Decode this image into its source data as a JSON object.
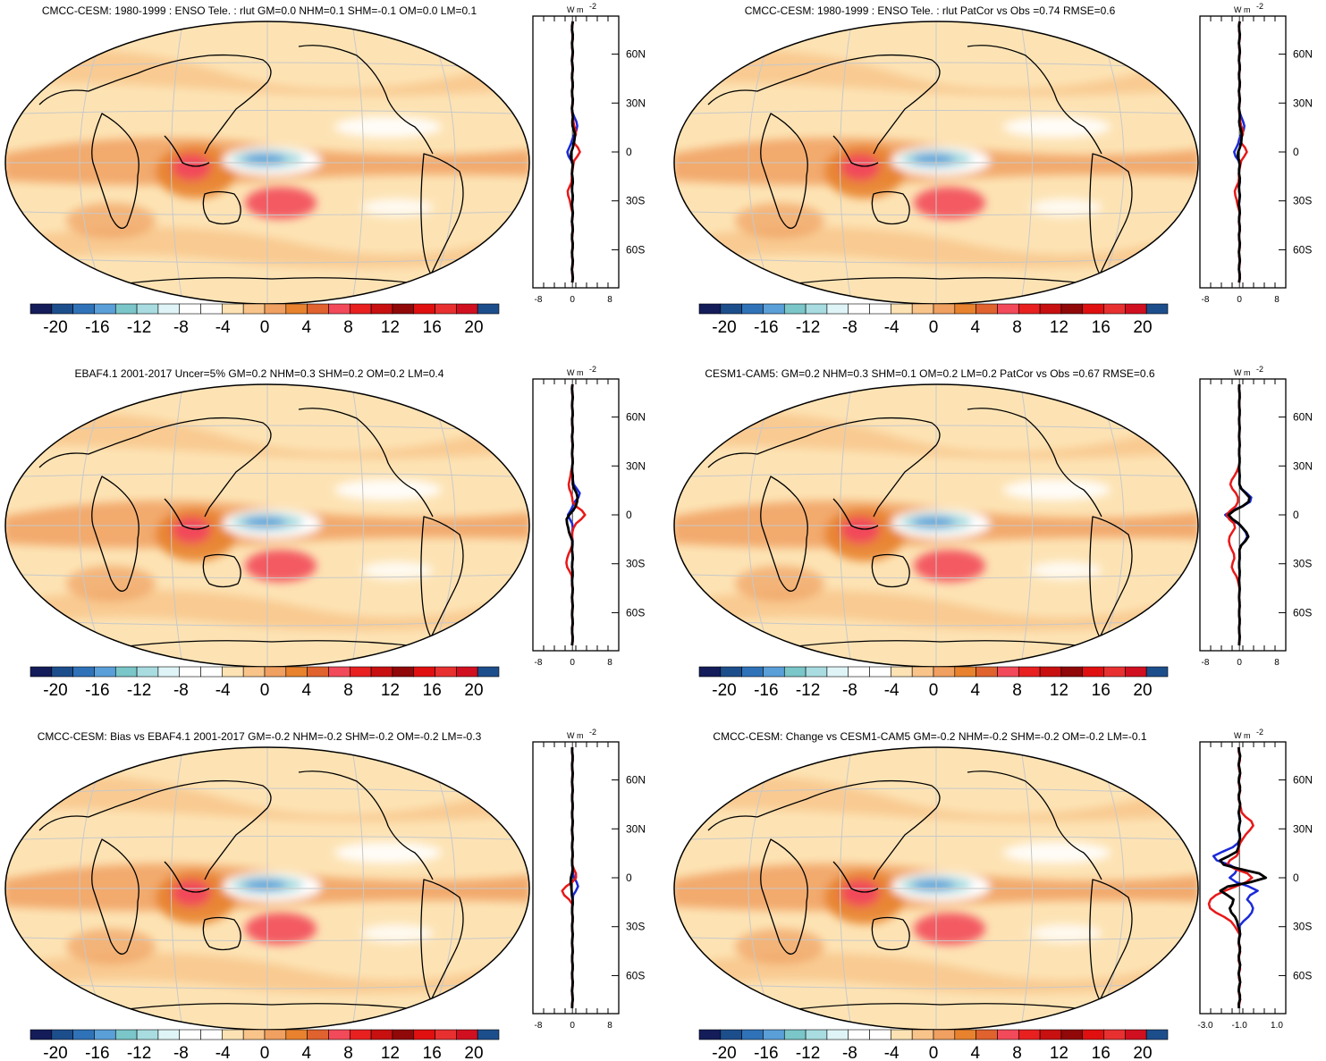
{
  "figure": {
    "colorbar": {
      "labels": [
        "-20",
        "-16",
        "-12",
        "-8",
        "-4",
        "0",
        "4",
        "8",
        "12",
        "16",
        "20"
      ],
      "colors": [
        "#141c5a",
        "#1d4e8c",
        "#2f72b8",
        "#5a9fd8",
        "#7ac6c8",
        "#a8dce0",
        "#dff4f6",
        "#ffffff",
        "#ffffff",
        "#fde3b4",
        "#f8c48a",
        "#f0a060",
        "#e8822e",
        "#e0622e",
        "#f24a5a",
        "#e82020",
        "#c81010",
        "#900808",
        "#e01010",
        "#e83030",
        "#d01020",
        "#1d4e8c"
      ]
    },
    "profile_unit": "W m",
    "profile_unit_sup": "-2",
    "lat_ticks": [
      "60N",
      "30N",
      "0",
      "30S",
      "60S"
    ],
    "panels": [
      {
        "id": "p1",
        "title": "CMCC-CESM: 1980-1999 : ENSO Tele. : rlut GM=0.0 NHM=0.1 SHM=-0.1 OM=0.0 LM=0.1",
        "xticks": [
          "-8",
          "0",
          "8"
        ]
      },
      {
        "id": "p2",
        "title": "CMCC-CESM: 1980-1999 : ENSO Tele. : rlut PatCor vs Obs =0.74 RMSE=0.6",
        "xticks": [
          "-8",
          "0",
          "8"
        ]
      },
      {
        "id": "p3",
        "title": "EBAF4.1 2001-2017 Uncer=5% GM=0.2 NHM=0.3 SHM=0.2 OM=0.2 LM=0.4",
        "xticks": [
          "-8",
          "0",
          "8"
        ]
      },
      {
        "id": "p4",
        "title": "CESM1-CAM5: GM=0.2 NHM=0.3 SHM=0.1 OM=0.2 LM=0.2 PatCor vs Obs =0.67 RMSE=0.6",
        "xticks": [
          "-8",
          "0",
          "8"
        ]
      },
      {
        "id": "p5",
        "title": "CMCC-CESM: Bias vs EBAF4.1 2001-2017 GM=-0.2 NHM=-0.2 SHM=-0.2 OM=-0.2 LM=-0.3",
        "xticks": [
          "-8",
          "0",
          "8"
        ]
      },
      {
        "id": "p6",
        "title": "CMCC-CESM: Change vs CESM1-CAM5 GM=-0.2 NHM=-0.2 SHM=-0.2 OM=-0.2 LM=-0.1",
        "xticks": [
          "-3.0",
          "-1.0",
          "1.0"
        ]
      }
    ]
  }
}
